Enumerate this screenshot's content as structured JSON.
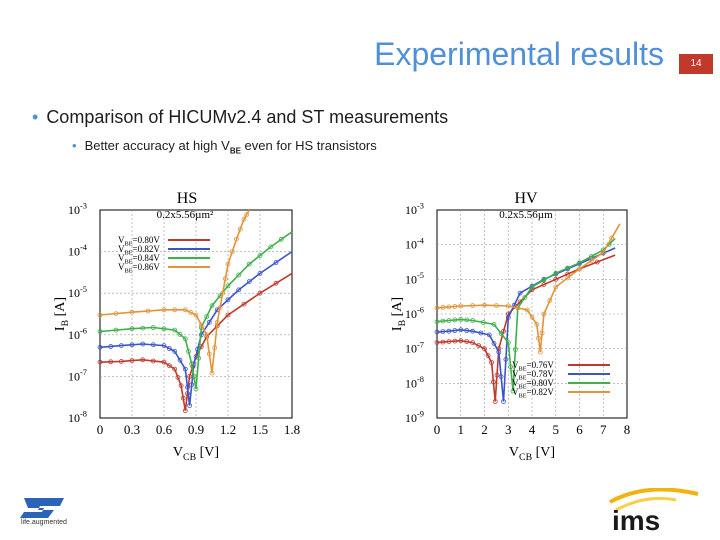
{
  "slide": {
    "title": "Experimental results",
    "page_number": "14",
    "bullet1": "Comparison of HICUMv2.4 and ST measurements",
    "bullet2_pre": "Better accuracy at high V",
    "bullet2_sub": "BE",
    "bullet2_post": " even for HS transistors",
    "st_caption": "life.augmented",
    "ims_logo": "ims"
  },
  "colors": {
    "title": "#4f90d6",
    "accent": "#c0392b",
    "red": "#c0392b",
    "blue": "#3b55c9",
    "green": "#3fb04a",
    "orange": "#e0953b"
  },
  "chart_data": [
    {
      "type": "line",
      "title": "HS",
      "subtitle": "0.2x5.56µm²",
      "xlabel": "VCB [V]",
      "ylabel": "IB [A]",
      "log_y": true,
      "xlim": [
        0,
        1.8
      ],
      "ylim": [
        1e-08,
        0.001
      ],
      "xticks": [
        "0",
        "0.3",
        "0.6",
        "0.9",
        "1.2",
        "1.5",
        "1.8"
      ],
      "yticks": [
        "10-8",
        "10-7",
        "10-6",
        "10-5",
        "10-4",
        "10-3"
      ],
      "grid": true,
      "legend_position": "top-left",
      "series": [
        {
          "name": "VBE=0.80V",
          "color": "#c0392b",
          "x": [
            0,
            0.2,
            0.4,
            0.6,
            0.7,
            0.76,
            0.8,
            0.84,
            0.9,
            1.0,
            1.2,
            1.5,
            1.8
          ],
          "y": [
            2.2e-07,
            2.3e-07,
            2.5e-07,
            2.2e-07,
            1.5e-07,
            6e-08,
            1.5e-08,
            1e-07,
            3e-07,
            9e-07,
            3e-06,
            1e-05,
            3e-05
          ]
        },
        {
          "name": "VBE=0.82V",
          "color": "#3b55c9",
          "x": [
            0,
            0.2,
            0.4,
            0.6,
            0.7,
            0.8,
            0.84,
            0.88,
            0.95,
            1.1,
            1.3,
            1.5,
            1.8
          ],
          "y": [
            5e-07,
            5.5e-07,
            6e-07,
            5.5e-07,
            4e-07,
            1.5e-07,
            2e-08,
            2e-07,
            1e-06,
            4e-06,
            1.2e-05,
            3e-05,
            0.0001
          ]
        },
        {
          "name": "VBE=0.84V",
          "color": "#3fb04a",
          "x": [
            0,
            0.3,
            0.5,
            0.7,
            0.8,
            0.86,
            0.9,
            0.95,
            1.05,
            1.2,
            1.4,
            1.6,
            1.8
          ],
          "y": [
            1.2e-06,
            1.4e-06,
            1.5e-06,
            1.3e-06,
            8e-07,
            2e-07,
            5e-08,
            1.5e-06,
            5e-06,
            1.5e-05,
            5e-05,
            0.00013,
            0.0003
          ]
        },
        {
          "name": "VBE=0.86V",
          "color": "#e0953b",
          "x": [
            0,
            0.3,
            0.6,
            0.8,
            0.9,
            1.0,
            1.05,
            1.1,
            1.15,
            1.2,
            1.28,
            1.35,
            1.4
          ],
          "y": [
            3e-06,
            3.5e-06,
            4e-06,
            4e-06,
            3e-06,
            1e-06,
            1.2e-07,
            2e-06,
            1e-05,
            5e-05,
            0.0002,
            0.0006,
            0.001
          ]
        }
      ]
    },
    {
      "type": "line",
      "title": "HV",
      "subtitle": "0.2x5.56µm",
      "xlabel": "VCB [V]",
      "ylabel": "IB [A]",
      "log_y": true,
      "xlim": [
        0,
        8
      ],
      "ylim": [
        1e-09,
        0.001
      ],
      "xticks": [
        "0",
        "1",
        "2",
        "3",
        "4",
        "5",
        "6",
        "7",
        "8"
      ],
      "yticks": [
        "10-9",
        "10-8",
        "10-7",
        "10-6",
        "10-5",
        "10-4",
        "10-3"
      ],
      "grid": true,
      "legend_position": "bottom-right",
      "series": [
        {
          "name": "VBE=0.76V",
          "color": "#c0392b",
          "x": [
            0,
            0.5,
            1,
            1.5,
            2.0,
            2.3,
            2.45,
            2.6,
            3,
            4,
            5,
            6,
            7.5
          ],
          "y": [
            1.5e-07,
            1.6e-07,
            1.7e-07,
            1.5e-07,
            1e-07,
            4e-08,
            3e-09,
            1e-07,
            1e-06,
            5e-06,
            1e-05,
            2e-05,
            5e-05
          ]
        },
        {
          "name": "VBE=0.78V",
          "color": "#3b55c9",
          "x": [
            0,
            0.5,
            1,
            1.5,
            2.2,
            2.6,
            2.8,
            3.0,
            3.5,
            4.5,
            5.5,
            6.5,
            7.5
          ],
          "y": [
            3e-07,
            3.2e-07,
            3.5e-07,
            3.2e-07,
            2.5e-07,
            8e-08,
            3e-09,
            8e-07,
            4e-06,
            1e-05,
            2e-05,
            4e-05,
            8e-05
          ]
        },
        {
          "name": "VBE=0.80V",
          "color": "#3fb04a",
          "x": [
            0,
            0.5,
            1,
            1.5,
            2.4,
            3.0,
            3.2,
            3.4,
            4,
            5,
            6,
            7,
            7.5
          ],
          "y": [
            6e-07,
            6.5e-07,
            7e-07,
            6.5e-07,
            5e-07,
            1.5e-07,
            6e-09,
            1.5e-06,
            6e-06,
            1.5e-05,
            3e-05,
            7e-05,
            0.00015
          ]
        },
        {
          "name": "VBE=0.82V",
          "color": "#e0953b",
          "x": [
            0,
            0.5,
            1,
            2,
            3,
            3.8,
            4.2,
            4.35,
            4.5,
            5,
            6,
            7,
            7.7
          ],
          "y": [
            1.5e-06,
            1.6e-06,
            1.7e-06,
            1.8e-06,
            1.7e-06,
            1.3e-06,
            5e-07,
            8e-08,
            1e-06,
            6e-06,
            2e-05,
            6e-05,
            0.0004
          ]
        }
      ]
    }
  ]
}
